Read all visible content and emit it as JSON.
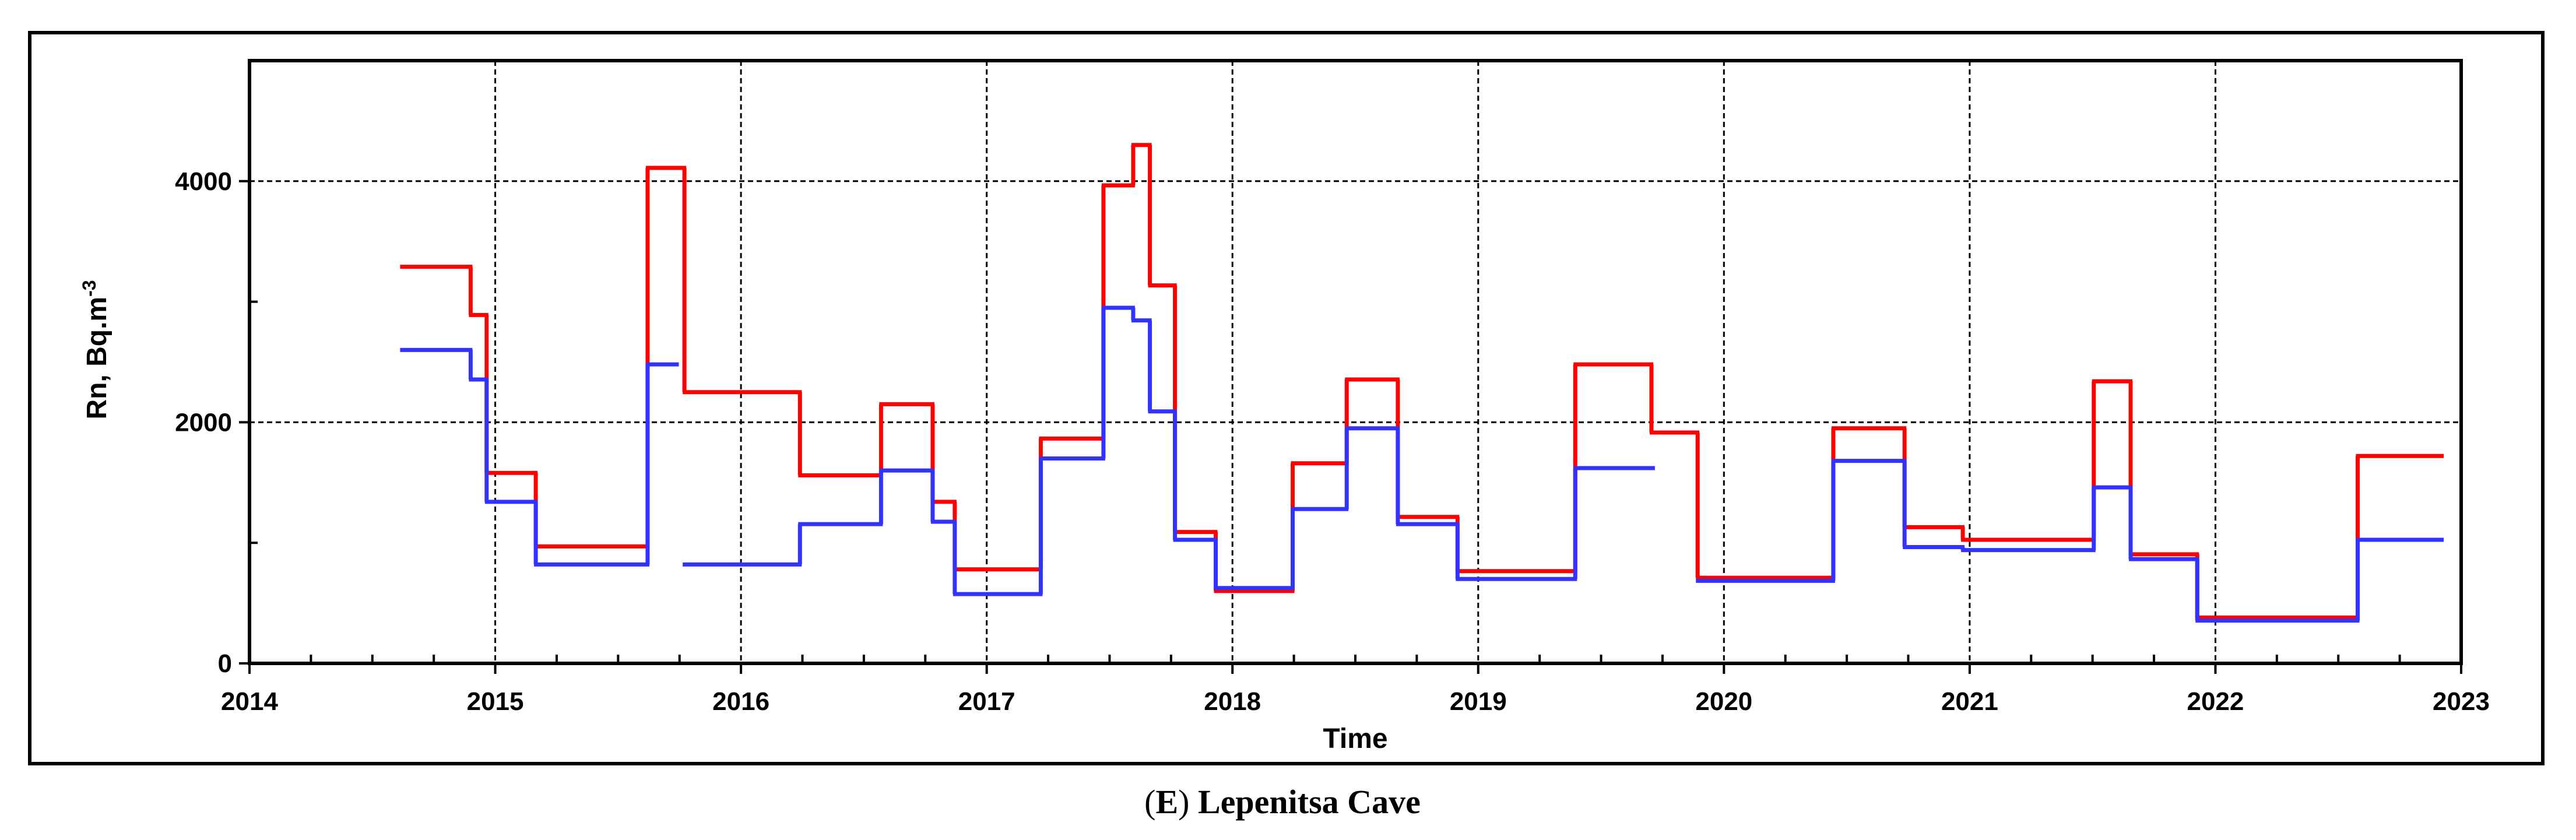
{
  "chart_data": {
    "type": "line",
    "step": true,
    "title": "",
    "caption_letter": "E",
    "caption_name": "Lepenitsa Cave",
    "xlabel": "Time",
    "ylabel": "Rn, Bq.m",
    "ylabel_sup": "-3",
    "xlim": [
      2014,
      2023
    ],
    "ylim": [
      0,
      5000
    ],
    "xticks": [
      "2014",
      "2015",
      "2016",
      "2017",
      "2018",
      "2019",
      "2020",
      "2021",
      "2022",
      "2023"
    ],
    "yticks": [
      "0",
      "2000",
      "4000"
    ],
    "grid": true,
    "legend": "none",
    "series": [
      {
        "color": "#ff0000",
        "segments": [
          [
            2014.62,
            2014.9,
            3290
          ],
          [
            2014.9,
            2014.965,
            2890
          ],
          [
            2014.965,
            2015.165,
            1580
          ],
          [
            2015.165,
            2015.62,
            970
          ],
          [
            2015.62,
            2015.77,
            4110
          ],
          [
            2015.77,
            2016.24,
            2250
          ],
          [
            2016.24,
            2016.57,
            1560
          ],
          [
            2016.57,
            2016.78,
            2150
          ],
          [
            2016.78,
            2016.87,
            1340
          ],
          [
            2016.87,
            2017.22,
            780
          ],
          [
            2017.22,
            2017.475,
            1865
          ],
          [
            2017.475,
            2017.596,
            3965
          ],
          [
            2017.596,
            2017.664,
            4300
          ],
          [
            2017.664,
            2017.766,
            3135
          ],
          [
            2017.766,
            2017.932,
            1090
          ],
          [
            2017.932,
            2018.245,
            600
          ],
          [
            2018.245,
            2018.465,
            1660
          ],
          [
            2018.465,
            2018.673,
            2355
          ],
          [
            2018.673,
            2018.916,
            1215
          ],
          [
            2018.916,
            2019.395,
            765
          ],
          [
            2019.395,
            2019.705,
            2480
          ],
          [
            2019.705,
            2019.893,
            1915
          ],
          [
            2019.893,
            2020.445,
            710
          ],
          [
            2020.445,
            2020.735,
            1950
          ],
          [
            2020.735,
            2020.972,
            1130
          ],
          [
            2020.972,
            2021.505,
            1025
          ],
          [
            2021.505,
            2021.655,
            2340
          ],
          [
            2021.655,
            2021.926,
            905
          ],
          [
            2021.926,
            2022.579,
            380
          ],
          [
            2022.579,
            2022.922,
            1720
          ]
        ]
      },
      {
        "color": "#3333ff",
        "segments": [
          [
            2014.62,
            2014.9,
            2600
          ],
          [
            2014.9,
            2014.965,
            2355
          ],
          [
            2014.965,
            2015.165,
            1340
          ],
          [
            2015.165,
            2015.62,
            820
          ],
          [
            2015.62,
            2015.74,
            2480
          ],
          [
            2015.77,
            2016.24,
            820
          ],
          [
            2016.24,
            2016.57,
            1155
          ],
          [
            2016.57,
            2016.78,
            1600
          ],
          [
            2016.78,
            2016.87,
            1175
          ],
          [
            2016.87,
            2017.22,
            575
          ],
          [
            2017.22,
            2017.475,
            1700
          ],
          [
            2017.475,
            2017.596,
            2950
          ],
          [
            2017.596,
            2017.664,
            2845
          ],
          [
            2017.664,
            2017.766,
            2090
          ],
          [
            2017.766,
            2017.932,
            1025
          ],
          [
            2017.932,
            2018.245,
            625
          ],
          [
            2018.245,
            2018.465,
            1280
          ],
          [
            2018.465,
            2018.673,
            1950
          ],
          [
            2018.673,
            2018.916,
            1155
          ],
          [
            2018.916,
            2019.395,
            700
          ],
          [
            2019.395,
            2019.712,
            1620
          ],
          [
            2019.893,
            2020.445,
            685
          ],
          [
            2020.445,
            2020.735,
            1680
          ],
          [
            2020.735,
            2020.972,
            965
          ],
          [
            2020.972,
            2021.505,
            940
          ],
          [
            2021.505,
            2021.655,
            1460
          ],
          [
            2021.655,
            2021.926,
            865
          ],
          [
            2021.926,
            2022.579,
            355
          ],
          [
            2022.579,
            2022.922,
            1025
          ]
        ]
      }
    ]
  }
}
